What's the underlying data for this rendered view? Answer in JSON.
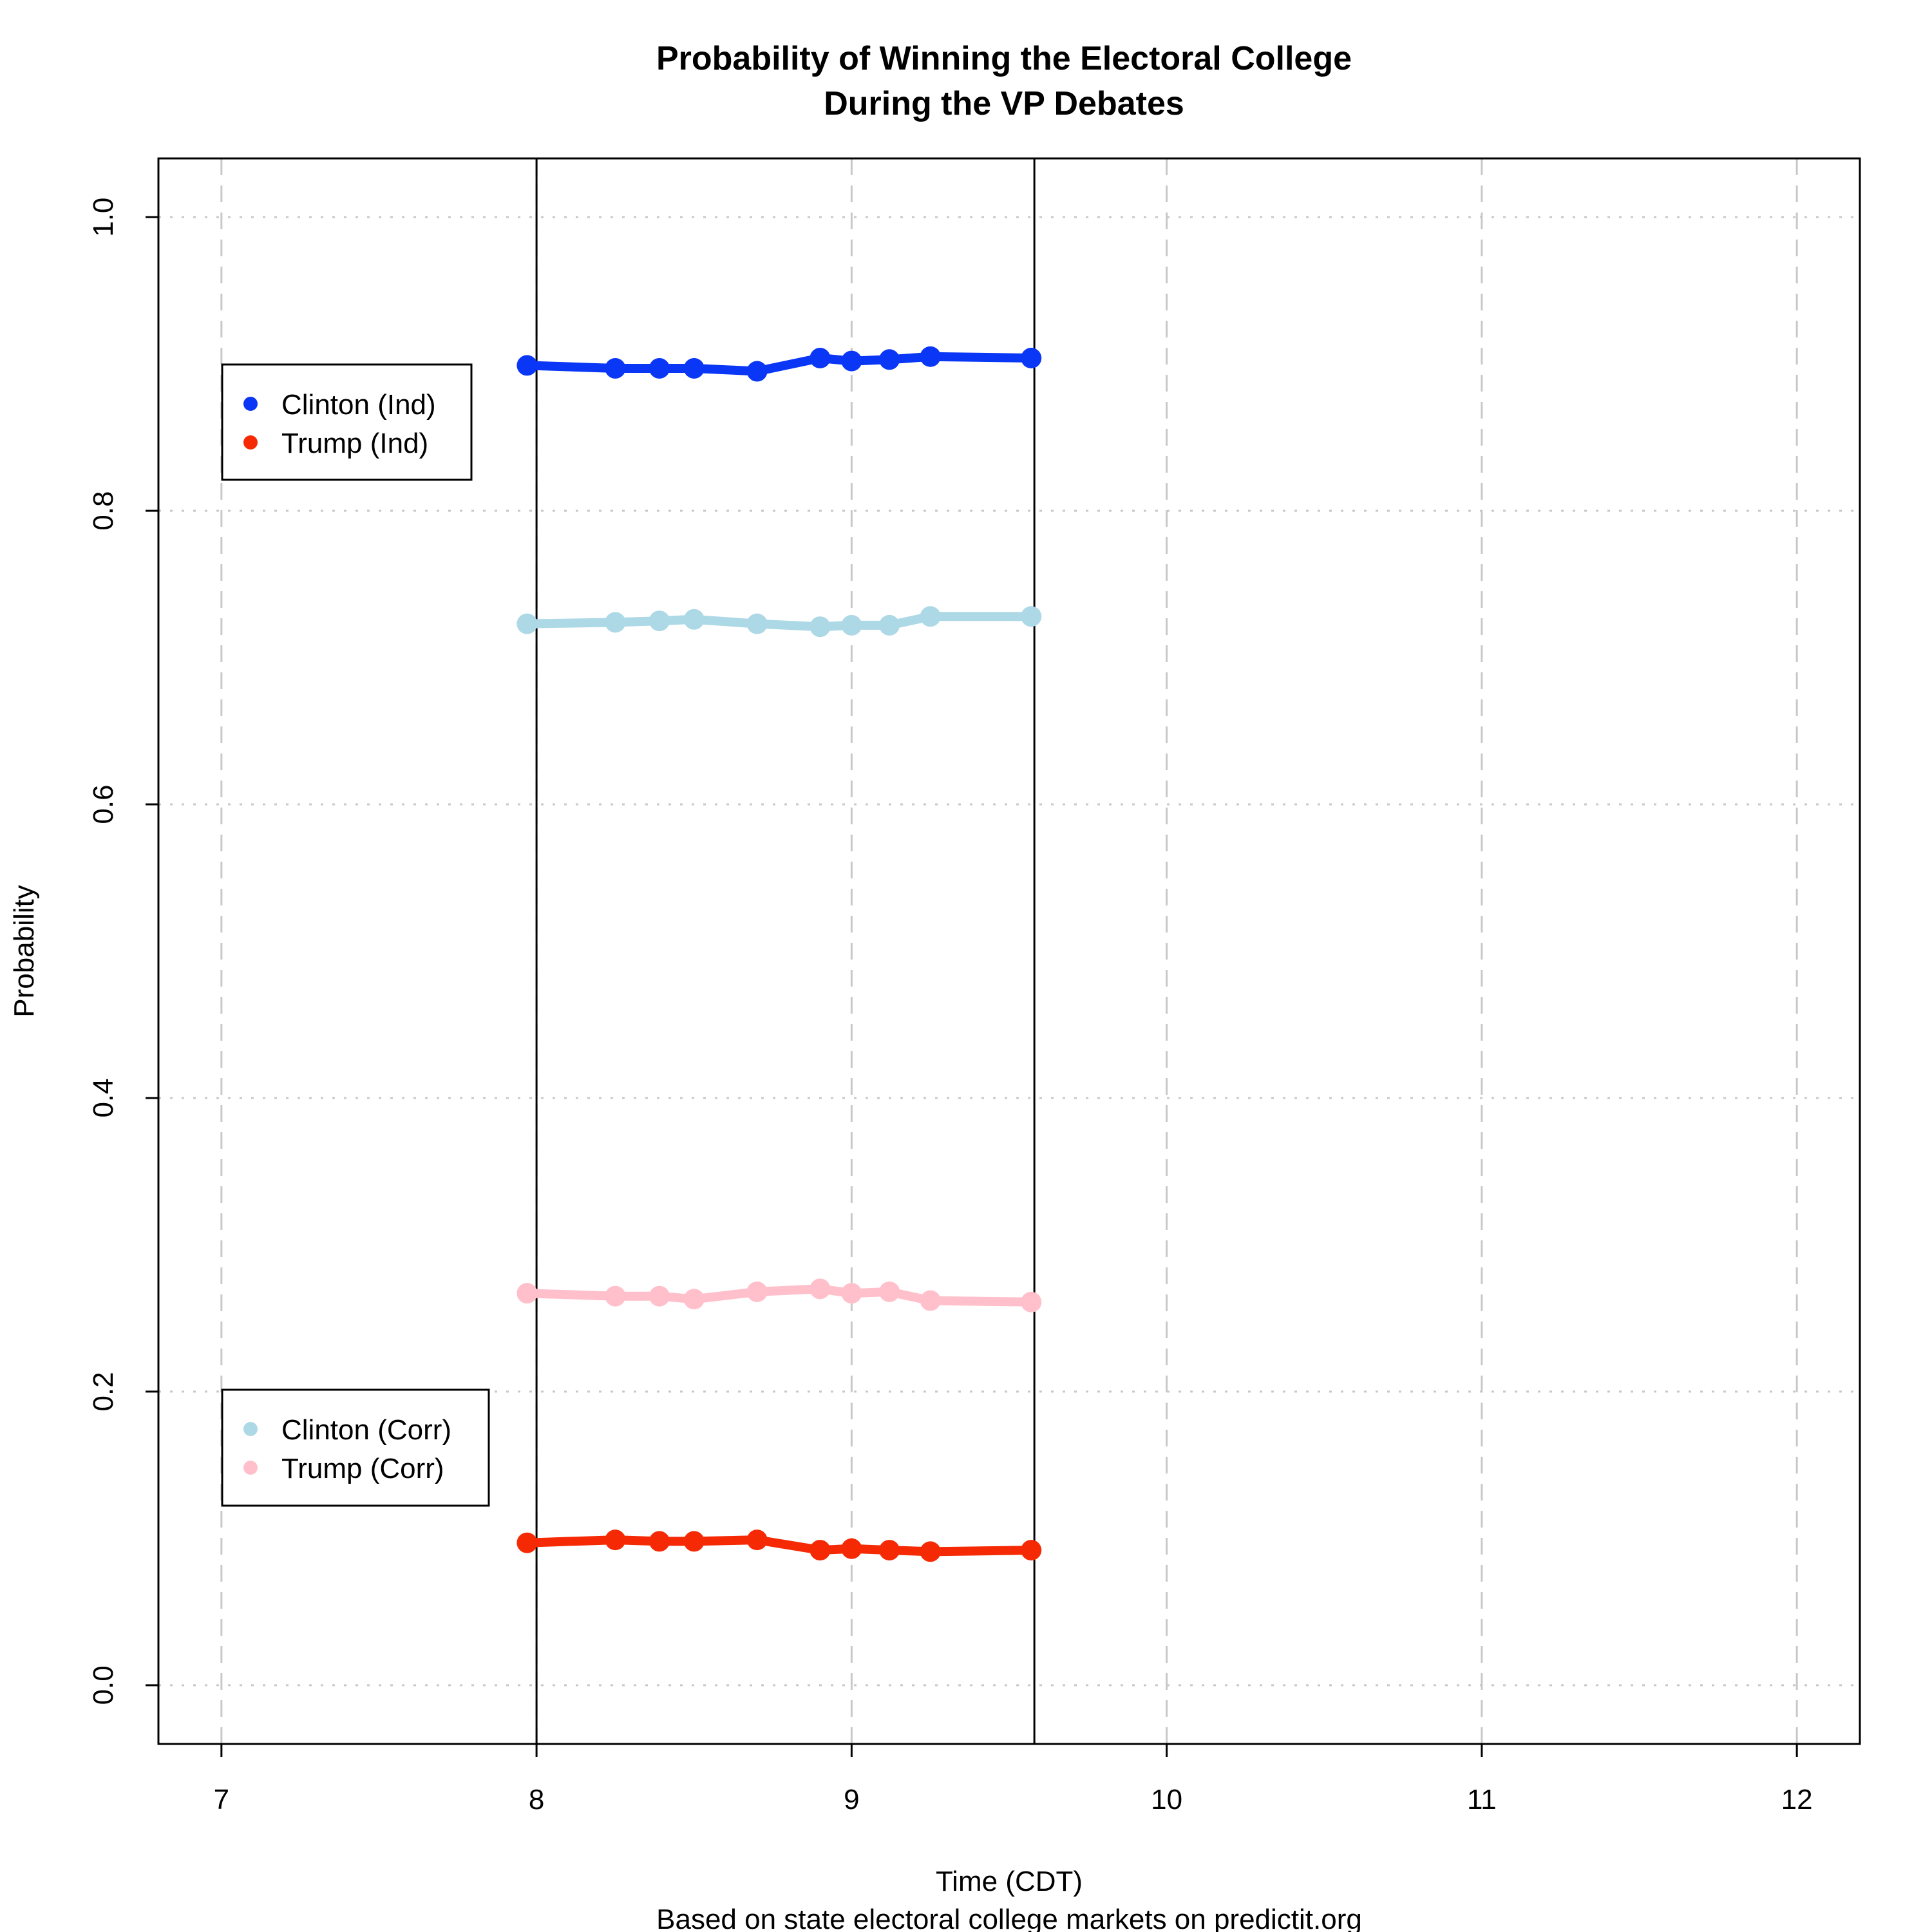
{
  "chart_data": {
    "type": "line",
    "title": [
      "Probability of Winning the Electoral College",
      "During the VP Debates"
    ],
    "xlabel": "Time (CDT)",
    "ylabel": "Probability",
    "caption": "Based on state electoral college markets on predictit.org",
    "xlim": [
      6.8,
      12.2
    ],
    "ylim": [
      -0.04,
      1.04
    ],
    "xticks": [
      7,
      8,
      9,
      10,
      11,
      12
    ],
    "xtick_labels": [
      "7",
      "8",
      "9",
      "10",
      "11",
      "12"
    ],
    "yticks": [
      0.0,
      0.2,
      0.4,
      0.6,
      0.8,
      1.0
    ],
    "ytick_labels": [
      "0.0",
      "0.2",
      "0.4",
      "0.6",
      "0.8",
      "1.0"
    ],
    "grid": true,
    "debate_markers_x": [
      8.0,
      9.58
    ],
    "x": [
      7.97,
      8.25,
      8.39,
      8.5,
      8.7,
      8.9,
      9.0,
      9.12,
      9.25,
      9.57
    ],
    "series": [
      {
        "name": "Clinton (Ind)",
        "color": "#0a36f5",
        "values": [
          0.899,
          0.897,
          0.897,
          0.897,
          0.895,
          0.904,
          0.902,
          0.903,
          0.905,
          0.904
        ]
      },
      {
        "name": "Trump (Ind)",
        "color": "#f52a05",
        "values": [
          0.097,
          0.099,
          0.098,
          0.098,
          0.099,
          0.092,
          0.093,
          0.092,
          0.091,
          0.092
        ]
      },
      {
        "name": "Clinton (Corr)",
        "color": "#add8e6",
        "values": [
          0.723,
          0.724,
          0.725,
          0.726,
          0.723,
          0.721,
          0.722,
          0.722,
          0.728,
          0.728
        ]
      },
      {
        "name": "Trump (Corr)",
        "color": "#ffc0cb",
        "values": [
          0.267,
          0.265,
          0.265,
          0.263,
          0.268,
          0.27,
          0.267,
          0.268,
          0.262,
          0.261
        ]
      }
    ],
    "legends": [
      {
        "placement": "upper-left",
        "entries": [
          "Clinton (Ind)",
          "Trump (Ind)"
        ]
      },
      {
        "placement": "lower-left",
        "entries": [
          "Clinton (Corr)",
          "Trump (Corr)"
        ]
      }
    ]
  }
}
